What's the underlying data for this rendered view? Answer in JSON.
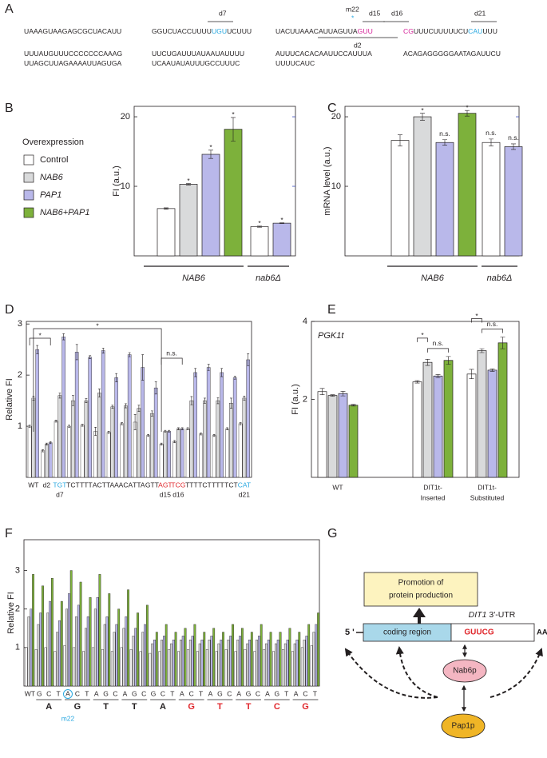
{
  "panel_labels": [
    "A",
    "B",
    "C",
    "D",
    "E",
    "F",
    "G"
  ],
  "sequence": {
    "rows": [
      [
        [
          {
            "text": "UAAAGUAAGAGCGCUACAUU",
            "color": "#231f20"
          }
        ],
        [
          {
            "text": "GGUCUACCUUUU",
            "color": "#231f20"
          },
          {
            "text": "UGU",
            "color": "#29a8e0"
          },
          {
            "text": "UCUUU",
            "color": "#231f20"
          }
        ],
        [
          {
            "text": "UACUUAAACAUUAGUUA",
            "color": "#231f20"
          },
          {
            "text": "GUU",
            "color": "#d6239a"
          }
        ],
        [
          {
            "text": "CG",
            "color": "#d6239a"
          },
          {
            "text": "UUUCUUUUUCU",
            "color": "#231f20"
          },
          {
            "text": "CAU",
            "color": "#29a8e0"
          },
          {
            "text": "UUU",
            "color": "#231f20"
          }
        ]
      ],
      [
        [
          {
            "text": "UUUAUGUUUCCCCCCCAAAG",
            "color": "#231f20"
          }
        ],
        [
          {
            "text": "UUCUGAUUUAUAAUAUUUU",
            "color": "#231f20"
          }
        ],
        [
          {
            "text": "AUUUCACACAAUUCCAUUUA",
            "color": "#231f20"
          }
        ],
        [
          {
            "text": "ACAGAGGGGGAATAGAUUCU",
            "color": "#231f20"
          }
        ]
      ],
      [
        [
          {
            "text": "UUAGCUUAGAAAAUUAGUGA",
            "color": "#231f20"
          }
        ],
        [
          {
            "text": "UCAAUAUAUUUGCCUUUC",
            "color": "#231f20"
          }
        ],
        [
          {
            "text": "UUUUCAUC",
            "color": "#231f20"
          }
        ]
      ]
    ],
    "annotations": [
      "d7",
      "m22",
      "*",
      "d15",
      "d16",
      "d21",
      "d2"
    ]
  },
  "chart_data": [
    {
      "type": "bar",
      "y_label": "FI (a.u.)",
      "legend_title": "Overexpression",
      "ylim": [
        0,
        21.5
      ],
      "yticks": [
        10,
        20
      ],
      "categories": [
        "NAB6",
        "nab6Δ"
      ],
      "series": [
        {
          "name": "Control",
          "color": "#ffffff",
          "values": [
            6.8,
            4.2
          ],
          "errors": [
            0.1,
            0.08
          ],
          "significance": [
            null,
            "*"
          ]
        },
        {
          "name": "NAB6",
          "color": "#d9dadb",
          "values": [
            10.3,
            null
          ],
          "errors": [
            0.1,
            null
          ],
          "significance": [
            "*",
            null
          ]
        },
        {
          "name": "PAP1",
          "color": "#b9b8ea",
          "values": [
            14.6,
            4.7
          ],
          "errors": [
            0.6,
            0.05
          ],
          "significance": [
            "*",
            "*"
          ]
        },
        {
          "name": "NAB6+PAP1",
          "color": "#7db13b",
          "values": [
            18.2,
            null
          ],
          "errors": [
            1.7,
            null
          ],
          "significance": [
            "*",
            null
          ]
        }
      ]
    },
    {
      "type": "bar",
      "y_label": "mRNA level (a.u.)",
      "ylim": [
        0,
        21.5
      ],
      "yticks": [
        10,
        20
      ],
      "categories": [
        "NAB6",
        "nab6Δ"
      ],
      "series": [
        {
          "color": "#ffffff",
          "values": [
            16.6,
            16.3
          ],
          "errors": [
            0.8,
            0.5
          ],
          "significance": [
            null,
            "n.s."
          ]
        },
        {
          "color": "#d9dadb",
          "values": [
            20.0,
            null
          ],
          "errors": [
            0.5,
            null
          ],
          "significance": [
            "*",
            null
          ]
        },
        {
          "color": "#b9b8ea",
          "values": [
            16.3,
            15.7
          ],
          "errors": [
            0.4,
            0.4
          ],
          "significance": [
            "n.s.",
            "n.s."
          ]
        },
        {
          "color": "#7db13b",
          "values": [
            20.5,
            null
          ],
          "errors": [
            0.4,
            null
          ],
          "significance": [
            "*",
            null
          ]
        }
      ]
    },
    {
      "type": "bar",
      "y_label": "Relative FI",
      "ylim": [
        0,
        3.05
      ],
      "yticks": [
        1,
        2,
        3
      ],
      "categories": [
        "WT",
        "d2",
        "TGT",
        "TCT",
        "TTT",
        "ACT",
        "TAA",
        "ACA",
        "TTA",
        "GTT",
        "AGT",
        "TCG",
        "TTT",
        "TCT",
        "TTT",
        "TCT",
        "CAT"
      ],
      "category_colors": [
        "#231f20",
        "#231f20",
        "#29a8e0",
        "#231f20",
        "#231f20",
        "#231f20",
        "#231f20",
        "#231f20",
        "#231f20",
        "#231f20",
        "#e0262b",
        "#e0262b",
        "#231f20",
        "#231f20",
        "#231f20",
        "#231f20",
        "#29a8e0"
      ],
      "sublabels": [
        null,
        null,
        "d7",
        null,
        null,
        null,
        null,
        null,
        null,
        null,
        "d15",
        "d16",
        null,
        null,
        null,
        null,
        "d21"
      ],
      "comparisons": [
        "*",
        "*",
        "n.s."
      ],
      "series": [
        {
          "color": "#ffffff",
          "values": [
            1.0,
            0.52,
            1.1,
            1.0,
            1.02,
            0.9,
            0.88,
            1.05,
            1.08,
            0.82,
            0.65,
            0.7,
            0.95,
            0.85,
            0.82,
            0.95,
            1.05
          ],
          "errors": [
            0.02,
            0.02,
            0.02,
            0.02,
            0.02,
            0.08,
            0.02,
            0.02,
            0.15,
            0.02,
            0.02,
            0.02,
            0.02,
            0.02,
            0.02,
            0.02,
            0.02
          ]
        },
        {
          "color": "#d9dadb",
          "values": [
            1.55,
            0.65,
            1.6,
            1.5,
            1.5,
            1.65,
            1.38,
            1.4,
            1.35,
            1.25,
            0.9,
            0.95,
            1.5,
            1.5,
            1.5,
            1.45,
            1.55
          ],
          "errors": [
            0.04,
            0.02,
            0.05,
            0.1,
            0.04,
            0.08,
            0.03,
            0.04,
            0.06,
            0.05,
            0.02,
            0.02,
            0.08,
            0.05,
            0.06,
            0.1,
            0.04
          ]
        },
        {
          "color": "#b9b8ea",
          "values": [
            2.5,
            0.68,
            2.75,
            2.45,
            2.35,
            2.48,
            1.95,
            2.4,
            2.15,
            1.75,
            0.9,
            0.95,
            2.05,
            2.15,
            2.05,
            1.95,
            2.3
          ],
          "errors": [
            0.08,
            0.02,
            0.06,
            0.15,
            0.03,
            0.05,
            0.08,
            0.04,
            0.25,
            0.12,
            0.02,
            0.02,
            0.08,
            0.06,
            0.08,
            0.03,
            0.12
          ]
        }
      ]
    },
    {
      "type": "bar",
      "y_label": "FI (a.u.)",
      "inner_label": "PGK1t",
      "ylim": [
        0,
        4
      ],
      "yticks": [
        2,
        4
      ],
      "categories": [
        [
          "WT"
        ],
        [
          "DIT1t-",
          "Inserted"
        ],
        [
          "DIT1t-",
          "Substituted"
        ]
      ],
      "comparisons": [
        null,
        [
          "*",
          "n.s."
        ],
        [
          "*",
          "n.s."
        ]
      ],
      "series": [
        {
          "color": "#ffffff",
          "values": [
            2.2,
            2.45,
            2.65
          ],
          "errors": [
            0.08,
            0.03,
            0.12
          ]
        },
        {
          "color": "#d9dadb",
          "values": [
            2.1,
            2.95,
            3.25
          ],
          "errors": [
            0.02,
            0.08,
            0.05
          ]
        },
        {
          "color": "#b9b8ea",
          "values": [
            2.15,
            2.6,
            2.75
          ],
          "errors": [
            0.06,
            0.04,
            0.03
          ]
        },
        {
          "color": "#7db13b",
          "values": [
            1.85,
            3.0,
            3.45
          ],
          "errors": [
            0.02,
            0.1,
            0.15
          ]
        }
      ]
    },
    {
      "type": "bar",
      "y_label": "Relative FI",
      "ylim": [
        0,
        3.8
      ],
      "yticks": [
        1,
        2,
        3
      ],
      "categories": [
        "WT",
        "G",
        "C",
        "T",
        "A",
        "C",
        "T",
        "A",
        "G",
        "C",
        "A",
        "G",
        "C",
        "G",
        "C",
        "T",
        "A",
        "C",
        "T",
        "A",
        "G",
        "C",
        "A",
        "G",
        "C",
        "A",
        "G",
        "T",
        "A",
        "C",
        "T"
      ],
      "codons": [
        "A",
        "G",
        "T",
        "T",
        "A",
        "G",
        "T",
        "T",
        "C",
        "G"
      ],
      "codon_colors": [
        "#231f20",
        "#231f20",
        "#231f20",
        "#231f20",
        "#231f20",
        "#e0262b",
        "#e0262b",
        "#e0262b",
        "#e0262b",
        "#e0262b"
      ],
      "highlight_label": "m22",
      "series": [
        {
          "color": "#ffffff",
          "values": [
            1.0,
            0.95,
            1.0,
            0.9,
            1.05,
            1.0,
            0.9,
            1.0,
            0.95,
            0.9,
            1.0,
            0.95,
            0.9,
            0.85,
            0.9,
            0.95,
            0.9,
            0.95,
            0.9,
            0.95,
            0.9,
            0.95,
            0.9,
            0.95,
            0.9,
            0.95,
            0.9,
            0.95,
            0.9,
            1.0,
            1.05
          ]
        },
        {
          "color": "#d9dadb",
          "values": [
            1.8,
            1.6,
            1.9,
            1.4,
            2.0,
            1.8,
            1.5,
            2.0,
            1.6,
            1.4,
            1.5,
            1.3,
            1.4,
            1.1,
            1.2,
            1.1,
            1.2,
            1.2,
            1.1,
            1.2,
            1.1,
            1.2,
            1.2,
            1.1,
            1.2,
            1.1,
            1.1,
            1.1,
            1.1,
            1.2,
            1.4
          ]
        },
        {
          "color": "#b9b8ea",
          "values": [
            2.0,
            1.9,
            2.2,
            1.7,
            2.4,
            2.1,
            1.8,
            2.3,
            1.8,
            1.6,
            1.8,
            1.5,
            1.6,
            1.2,
            1.3,
            1.2,
            1.3,
            1.3,
            1.2,
            1.3,
            1.2,
            1.3,
            1.3,
            1.2,
            1.3,
            1.2,
            1.2,
            1.2,
            1.2,
            1.3,
            1.6
          ]
        },
        {
          "color": "#7db13b",
          "values": [
            2.9,
            2.6,
            2.8,
            2.2,
            3.0,
            2.7,
            2.3,
            2.9,
            2.4,
            2.0,
            2.5,
            1.9,
            2.1,
            1.4,
            1.6,
            1.4,
            1.5,
            1.6,
            1.4,
            1.5,
            1.4,
            1.6,
            1.5,
            1.4,
            1.6,
            1.4,
            1.4,
            1.5,
            1.4,
            1.6,
            1.9
          ]
        }
      ]
    }
  ],
  "diagram": {
    "promotion": [
      "Promotion of",
      "protein production"
    ],
    "utr_gene": "DIT1",
    "utr_label": "3'-UTR",
    "five_prime": "5 '",
    "coding_region": "coding region",
    "motif": "GUUCG",
    "poly_a": "AAAAAAA",
    "nab6p": "Nab6p",
    "pap1p": "Pap1p"
  }
}
